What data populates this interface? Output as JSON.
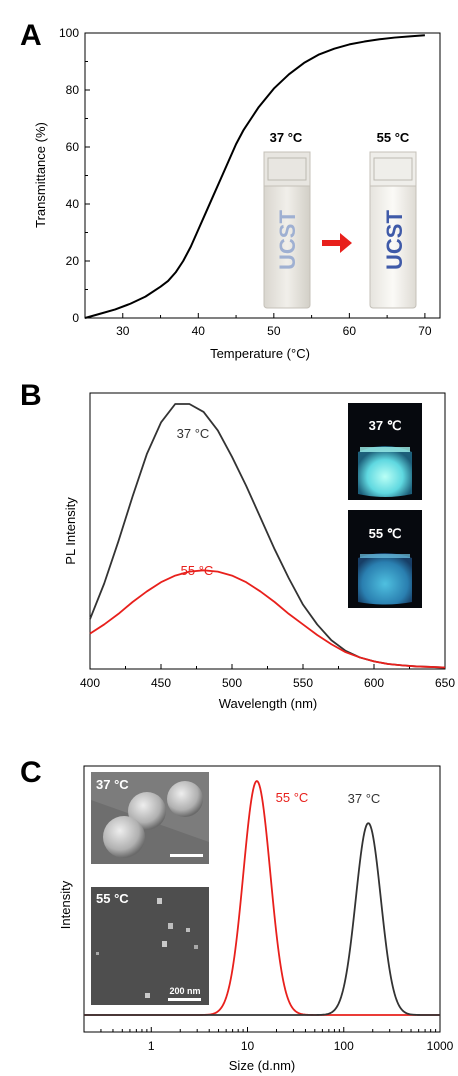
{
  "chart_data": [
    {
      "panel": "A",
      "type": "line",
      "xlabel": "Temperature (°C)",
      "ylabel": "Transmittance (%)",
      "xlim": [
        25,
        72
      ],
      "ylim": [
        0,
        100
      ],
      "xticks": [
        30,
        40,
        50,
        60,
        70
      ],
      "yticks": [
        0,
        20,
        40,
        60,
        80,
        100
      ],
      "series": [
        {
          "color": "#000000",
          "x": [
            25,
            27,
            29,
            31,
            33,
            35,
            36,
            37,
            38,
            39,
            40,
            41,
            42,
            43,
            44,
            45,
            46,
            47,
            48,
            50,
            52,
            54,
            56,
            58,
            60,
            62,
            64,
            66,
            68,
            70
          ],
          "y": [
            0,
            1.5,
            3,
            5,
            7.5,
            11,
            13,
            16,
            20,
            25,
            31,
            37,
            43,
            49,
            55,
            61,
            66,
            70,
            74,
            80.5,
            85.5,
            89.5,
            92.5,
            94.5,
            96,
            97,
            97.8,
            98.4,
            98.8,
            99.2
          ]
        }
      ],
      "annotations": [
        {
          "text": "37 °C",
          "color": "#000000"
        },
        {
          "text": "55 °C",
          "color": "#000000"
        }
      ],
      "inset_text": {
        "vial_text": "UCST",
        "arrow_color": "#e8201c"
      }
    },
    {
      "panel": "B",
      "type": "line",
      "xlabel": "Wavelength (nm)",
      "ylabel": "PL Intensity",
      "xlim": [
        400,
        650
      ],
      "ylim": [
        0,
        1
      ],
      "xticks": [
        400,
        450,
        500,
        550,
        600,
        650
      ],
      "series": [
        {
          "name": "37 °C",
          "color": "#333333",
          "x": [
            400,
            410,
            420,
            430,
            440,
            450,
            460,
            470,
            480,
            490,
            500,
            510,
            520,
            530,
            540,
            550,
            560,
            570,
            580,
            590,
            600,
            610,
            620,
            630,
            640,
            650
          ],
          "y": [
            0.185,
            0.32,
            0.48,
            0.65,
            0.81,
            0.93,
            1.0,
            1.0,
            0.97,
            0.9,
            0.8,
            0.69,
            0.57,
            0.45,
            0.34,
            0.24,
            0.165,
            0.105,
            0.065,
            0.04,
            0.025,
            0.015,
            0.01,
            0.006,
            0.004,
            0.002
          ]
        },
        {
          "name": "55 °C",
          "color": "#e8201c",
          "x": [
            400,
            410,
            420,
            430,
            440,
            450,
            460,
            470,
            480,
            490,
            500,
            510,
            520,
            530,
            540,
            550,
            560,
            570,
            580,
            590,
            600,
            610,
            620,
            630,
            640,
            650
          ],
          "y": [
            0.13,
            0.165,
            0.205,
            0.25,
            0.29,
            0.325,
            0.35,
            0.365,
            0.37,
            0.365,
            0.35,
            0.325,
            0.29,
            0.25,
            0.205,
            0.165,
            0.125,
            0.09,
            0.06,
            0.04,
            0.025,
            0.015,
            0.01,
            0.006,
            0.004,
            0.002
          ]
        }
      ],
      "annotations": [
        {
          "text": "37 °C",
          "color": "#333333"
        },
        {
          "text": "55 °C",
          "color": "#e8201c"
        }
      ],
      "photo_labels": [
        "37 ℃",
        "55 ℃"
      ]
    },
    {
      "panel": "C",
      "type": "line",
      "xscale": "log",
      "xlabel": "Size (d.nm)",
      "ylabel": "Intensity",
      "xlim": [
        0.2,
        1000
      ],
      "ylim": [
        0,
        1
      ],
      "xticks": [
        1,
        10,
        100,
        1000
      ],
      "series": [
        {
          "name": "55 °C",
          "color": "#e8201c",
          "peak": 12.5,
          "log_sigma": 0.14,
          "height": 1.0
        },
        {
          "name": "37 °C",
          "color": "#333333",
          "peak": 180,
          "log_sigma": 0.13,
          "height": 0.82
        }
      ],
      "annotations": [
        {
          "text": "55 °C",
          "color": "#e8201c"
        },
        {
          "text": "37 °C",
          "color": "#333333"
        }
      ],
      "photo_labels": [
        "37 °C",
        "55 °C"
      ],
      "scale_bar_label": "200 nm"
    }
  ]
}
